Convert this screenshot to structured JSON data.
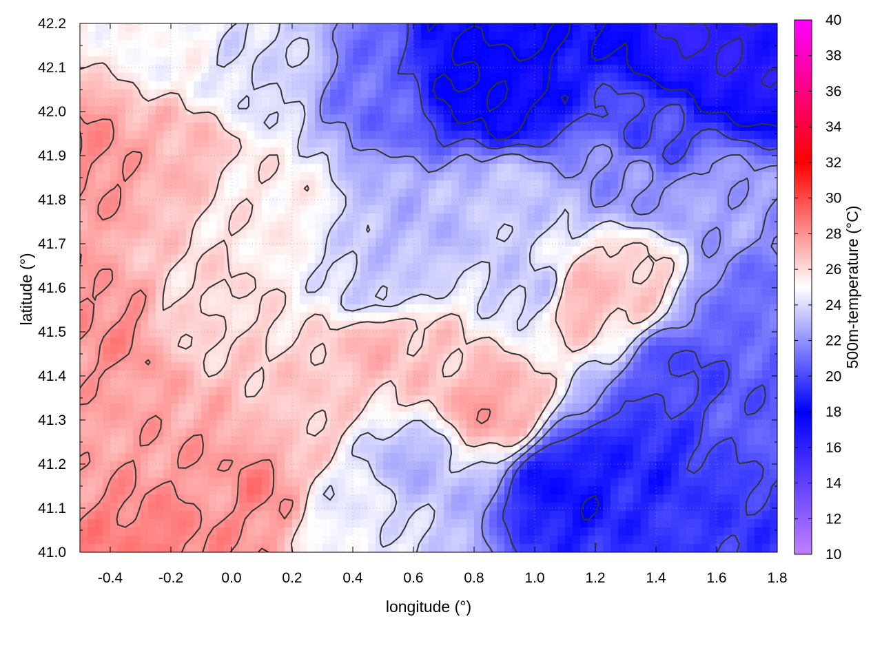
{
  "chart_data": {
    "type": "heatmap",
    "title": "",
    "xlabel": "longitude (°)",
    "ylabel": "latitude (°)",
    "colorbar_label": "500m-temperature (°C)",
    "xlim": [
      -0.5,
      1.8
    ],
    "ylim": [
      41.0,
      42.2
    ],
    "zlim": [
      10,
      40
    ],
    "x_ticks": [
      -0.4,
      -0.2,
      0.0,
      0.2,
      0.4,
      0.6,
      0.8,
      1.0,
      1.2,
      1.4,
      1.6,
      1.8
    ],
    "x_tick_labels": [
      "-0.4",
      "-0.2",
      "0.0",
      "0.2",
      "0.4",
      "0.6",
      "0.8",
      "1.0",
      "1.2",
      "1.4",
      "1.6",
      "1.8"
    ],
    "y_ticks": [
      41.0,
      41.1,
      41.2,
      41.3,
      41.4,
      41.5,
      41.6,
      41.7,
      41.8,
      41.9,
      42.0,
      42.1,
      42.2
    ],
    "y_tick_labels": [
      "41.0",
      "41.1",
      "41.2",
      "41.3",
      "41.4",
      "41.5",
      "41.6",
      "41.7",
      "41.8",
      "41.9",
      "42.0",
      "42.1",
      "42.2"
    ],
    "colorbar_ticks": [
      10,
      12,
      14,
      16,
      18,
      20,
      22,
      24,
      26,
      28,
      30,
      32,
      34,
      36,
      38,
      40
    ],
    "colorbar_tick_labels": [
      "10",
      "12",
      "14",
      "16",
      "18",
      "20",
      "22",
      "24",
      "26",
      "28",
      "30",
      "32",
      "34",
      "36",
      "38",
      "40"
    ],
    "colormap": [
      {
        "value": 10,
        "color": "#c080ff"
      },
      {
        "value": 18,
        "color": "#0000ff"
      },
      {
        "value": 25,
        "color": "#ffffff"
      },
      {
        "value": 32,
        "color": "#ff0000"
      },
      {
        "value": 40,
        "color": "#ff00ff"
      }
    ],
    "grid": true,
    "contour_color": "#333333",
    "field_samples": [
      {
        "x": -0.45,
        "y": 41.9,
        "value": 28.0
      },
      {
        "x": -0.4,
        "y": 41.5,
        "value": 28.0
      },
      {
        "x": -0.35,
        "y": 41.3,
        "value": 27.5
      },
      {
        "x": -0.2,
        "y": 41.9,
        "value": 27.0
      },
      {
        "x": -0.1,
        "y": 41.55,
        "value": 26.0
      },
      {
        "x": 0.0,
        "y": 41.15,
        "value": 27.5
      },
      {
        "x": 0.05,
        "y": 41.15,
        "value": 28.5
      },
      {
        "x": -0.25,
        "y": 41.01,
        "value": 28.5
      },
      {
        "x": 0.2,
        "y": 41.3,
        "value": 26.5
      },
      {
        "x": 0.1,
        "y": 41.8,
        "value": 25.5
      },
      {
        "x": -0.2,
        "y": 42.15,
        "value": 25.0
      },
      {
        "x": 0.1,
        "y": 42.1,
        "value": 24.0
      },
      {
        "x": 0.5,
        "y": 42.05,
        "value": 21.0
      },
      {
        "x": 0.75,
        "y": 42.08,
        "value": 18.0
      },
      {
        "x": 0.9,
        "y": 42.03,
        "value": 17.5
      },
      {
        "x": 1.55,
        "y": 42.15,
        "value": 16.0
      },
      {
        "x": 1.7,
        "y": 42.1,
        "value": 16.5
      },
      {
        "x": 1.4,
        "y": 41.95,
        "value": 20.0
      },
      {
        "x": 1.6,
        "y": 41.8,
        "value": 22.5
      },
      {
        "x": 0.6,
        "y": 41.75,
        "value": 23.0
      },
      {
        "x": 0.9,
        "y": 41.8,
        "value": 23.5
      },
      {
        "x": 0.5,
        "y": 41.6,
        "value": 23.5
      },
      {
        "x": 0.5,
        "y": 41.47,
        "value": 27.0
      },
      {
        "x": 0.65,
        "y": 41.43,
        "value": 26.5
      },
      {
        "x": 1.15,
        "y": 41.58,
        "value": 27.0
      },
      {
        "x": 1.3,
        "y": 41.62,
        "value": 26.5
      },
      {
        "x": 0.85,
        "y": 41.33,
        "value": 27.5
      },
      {
        "x": 0.6,
        "y": 41.2,
        "value": 23.0
      },
      {
        "x": 0.4,
        "y": 41.1,
        "value": 24.5
      },
      {
        "x": 1.1,
        "y": 41.15,
        "value": 18.5
      },
      {
        "x": 1.35,
        "y": 41.2,
        "value": 19.0
      },
      {
        "x": 1.6,
        "y": 41.08,
        "value": 19.5
      },
      {
        "x": 1.5,
        "y": 41.4,
        "value": 20.0
      },
      {
        "x": 1.7,
        "y": 41.55,
        "value": 21.0
      },
      {
        "x": 1.75,
        "y": 41.3,
        "value": 20.5
      },
      {
        "x": 1.0,
        "y": 41.6,
        "value": 23.5
      },
      {
        "x": 1.3,
        "y": 41.85,
        "value": 22.0
      }
    ]
  }
}
